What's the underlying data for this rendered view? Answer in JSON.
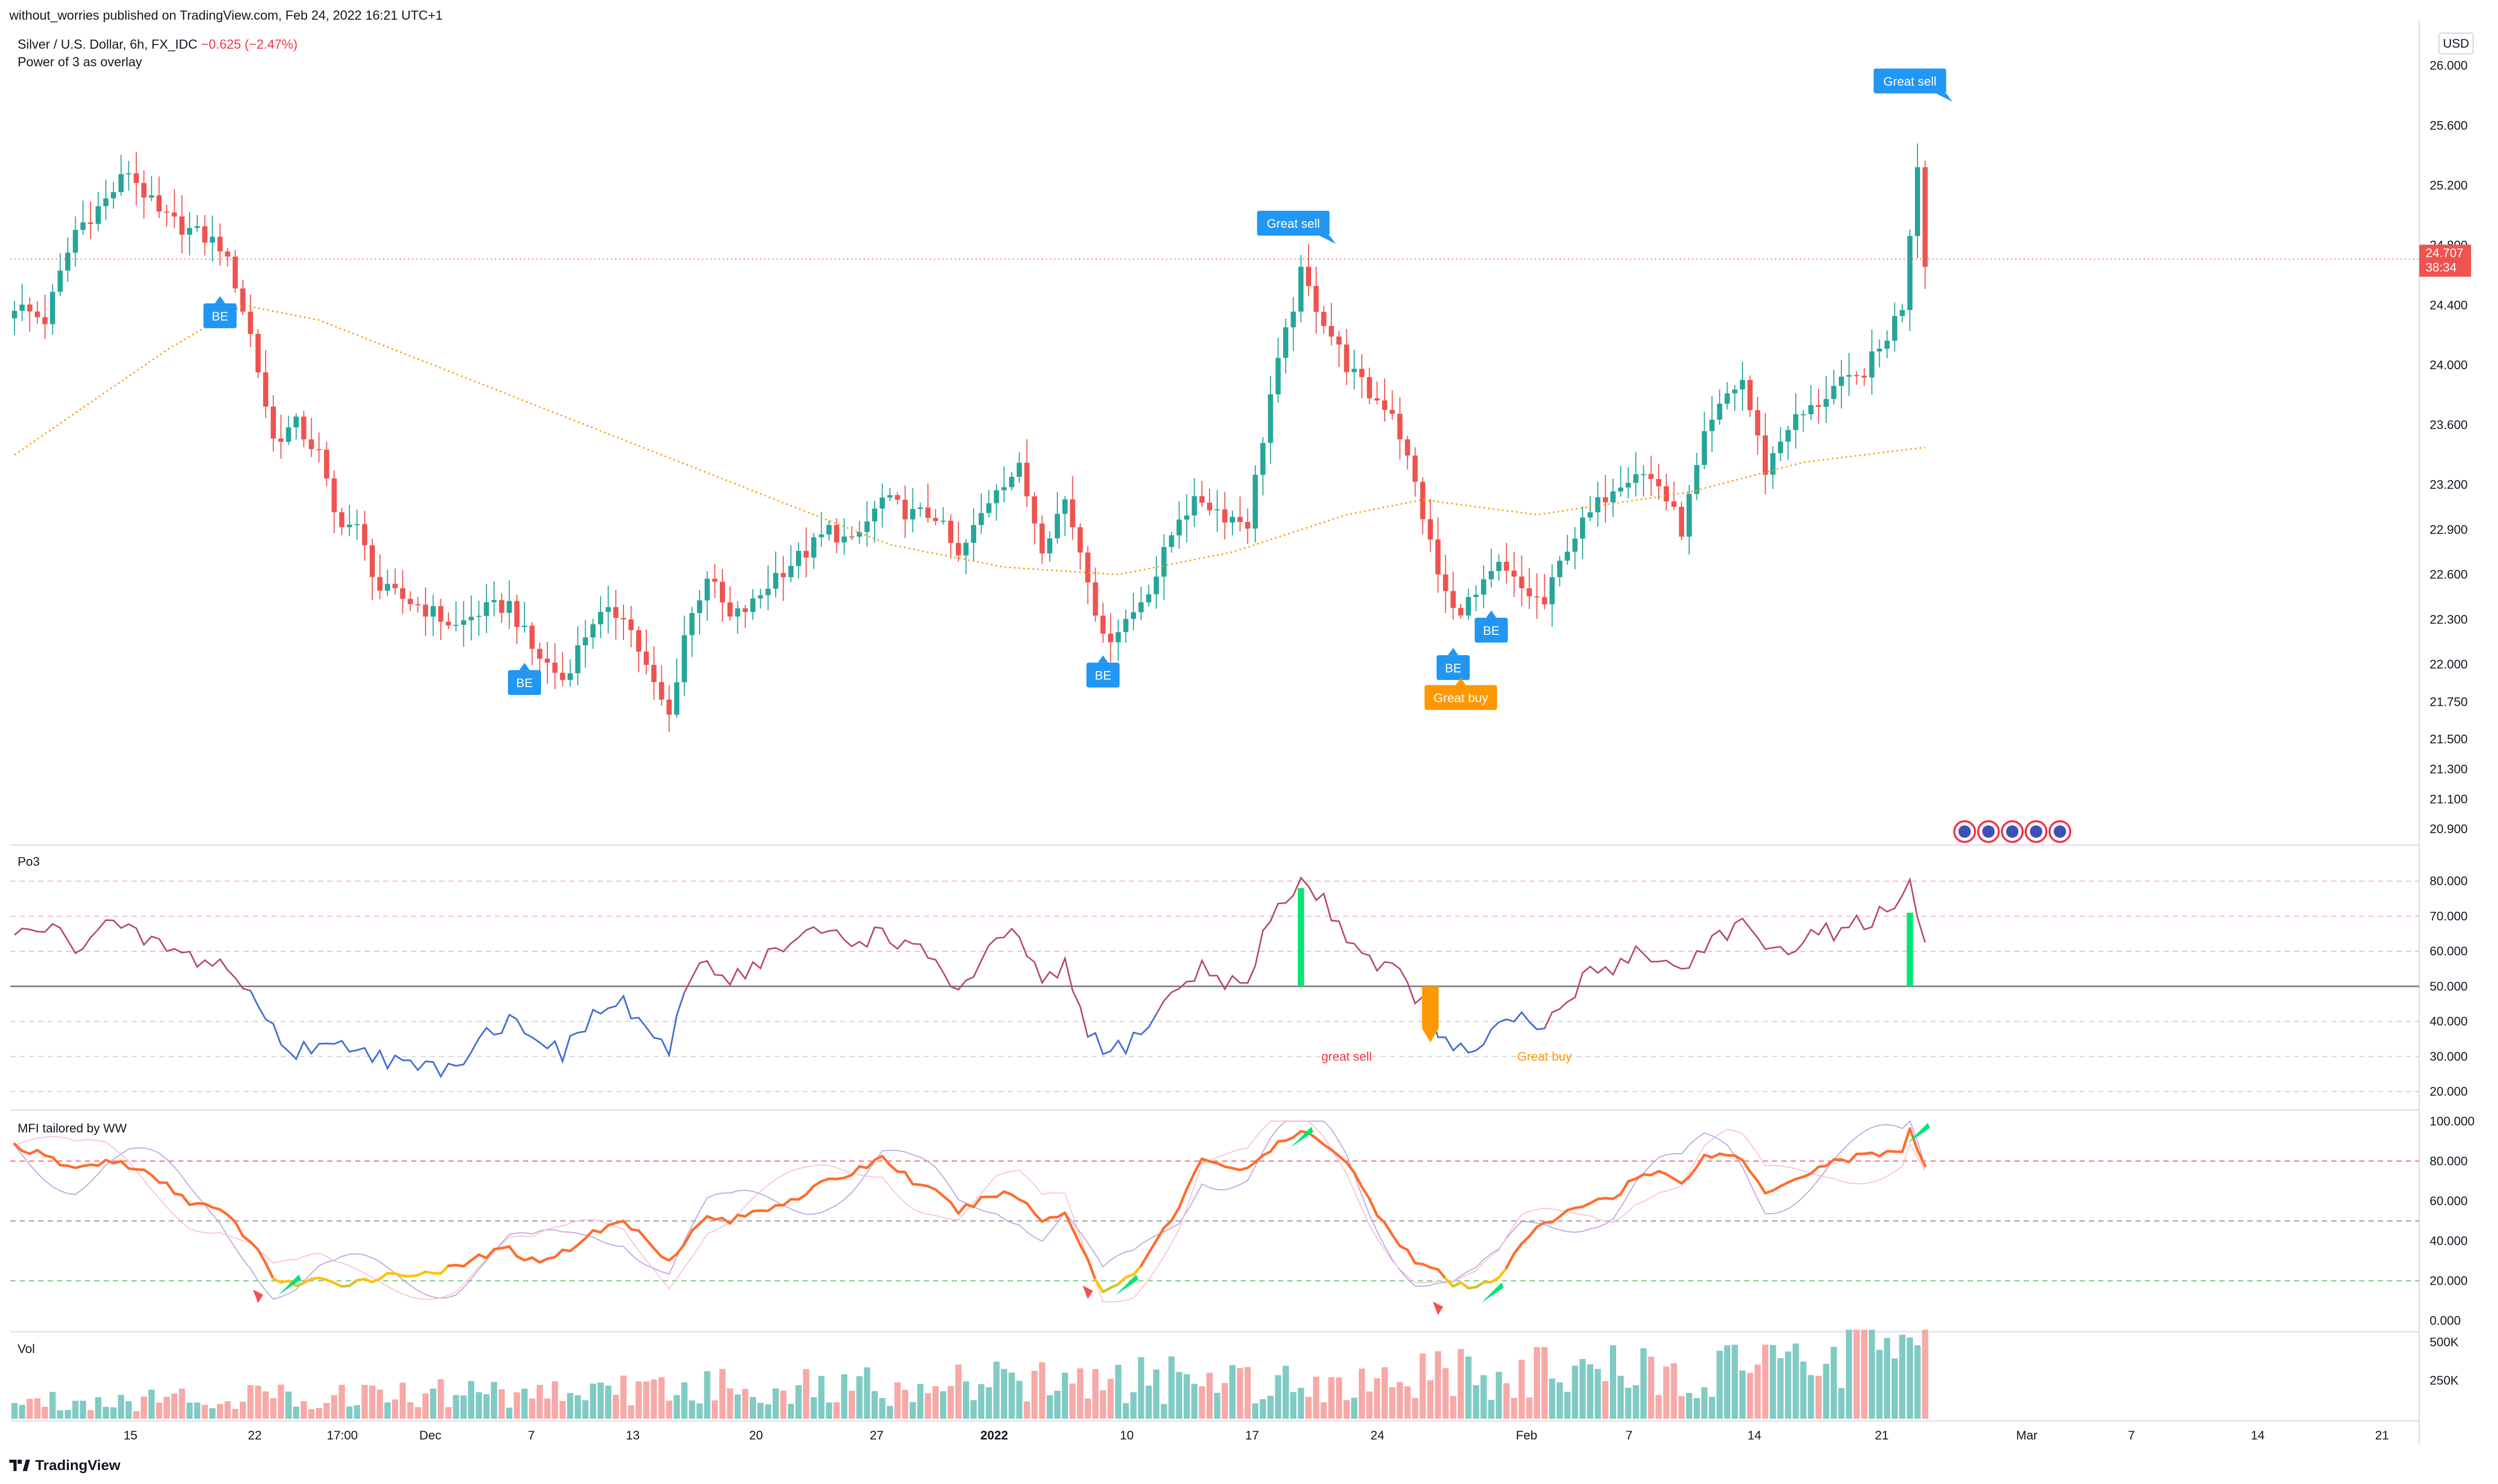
{
  "header": {
    "published": "without_worries published on TradingView.com, Feb 24, 2022 16:21 UTC+1",
    "symbol": "Silver / U.S. Dollar, 6h, FX_IDC",
    "change": "−0.625 (−2.47%)",
    "indicator": "Power of 3 as overlay"
  },
  "currency_button": "USD",
  "price_label": {
    "value": "24.707",
    "countdown": "38:34"
  },
  "panes": {
    "po3": "Po3",
    "mfi": "MFI tailored by WW",
    "vol": "Vol"
  },
  "footer": {
    "brand": "TradingView"
  },
  "colors": {
    "up": "#26a69a",
    "down": "#ef5350",
    "ma": "#ff9800",
    "signal": "#2196f3",
    "buy": "#ff9800",
    "po3_line": "#b54a6a",
    "po3_low": "#3f6fd8",
    "mfi_main": "#ff6d2e",
    "mfi_green": "#00e676"
  },
  "chart_data": [
    {
      "type": "candlestick",
      "title": "Silver / U.S. Dollar, 6h, FX_IDC",
      "ylim": [
        20.8,
        26.3
      ],
      "y_ticks": [
        "20.900",
        "21.100",
        "21.300",
        "21.500",
        "21.750",
        "22.000",
        "22.300",
        "22.600",
        "22.900",
        "23.200",
        "23.600",
        "24.000",
        "24.400",
        "24.800",
        "25.200",
        "25.600",
        "26.000"
      ],
      "x_ticks": [
        "15",
        "22",
        "17:00",
        "Dec",
        "7",
        "13",
        "20",
        "27",
        "2022",
        "10",
        "17",
        "24",
        "Feb",
        "7",
        "14",
        "21",
        "Mar",
        "7",
        "14",
        "21"
      ],
      "close_path": [
        [
          0,
          24.4
        ],
        [
          4,
          24.3
        ],
        [
          8,
          24.9
        ],
        [
          12,
          25.1
        ],
        [
          15,
          25.3
        ],
        [
          19,
          25.0
        ],
        [
          23,
          24.9
        ],
        [
          27,
          24.8
        ],
        [
          29,
          24.55
        ],
        [
          31,
          24.2
        ],
        [
          34,
          23.5
        ],
        [
          37,
          23.6
        ],
        [
          40,
          23.4
        ],
        [
          42,
          23.0
        ],
        [
          45,
          22.9
        ],
        [
          48,
          22.5
        ],
        [
          53,
          22.4
        ],
        [
          58,
          22.25
        ],
        [
          61,
          22.35
        ],
        [
          65,
          22.4
        ],
        [
          68,
          22.1
        ],
        [
          72,
          21.9
        ],
        [
          76,
          22.3
        ],
        [
          80,
          22.35
        ],
        [
          84,
          21.85
        ],
        [
          86,
          21.65
        ],
        [
          88,
          22.2
        ],
        [
          91,
          22.6
        ],
        [
          94,
          22.3
        ],
        [
          97,
          22.4
        ],
        [
          100,
          22.6
        ],
        [
          104,
          22.75
        ],
        [
          107,
          22.9
        ],
        [
          110,
          22.8
        ],
        [
          114,
          23.1
        ],
        [
          118,
          23.0
        ],
        [
          121,
          23.0
        ],
        [
          124,
          22.7
        ],
        [
          127,
          23.0
        ],
        [
          129,
          23.2
        ],
        [
          132,
          23.3
        ],
        [
          135,
          22.8
        ],
        [
          138,
          23.1
        ],
        [
          141,
          22.6
        ],
        [
          143,
          22.15
        ],
        [
          147,
          22.35
        ],
        [
          150,
          22.6
        ],
        [
          153,
          23.0
        ],
        [
          156,
          23.1
        ],
        [
          159,
          23.0
        ],
        [
          162,
          22.95
        ],
        [
          165,
          23.8
        ],
        [
          167,
          24.2
        ],
        [
          169,
          24.6
        ],
        [
          172,
          24.3
        ],
        [
          175,
          24.0
        ],
        [
          178,
          23.8
        ],
        [
          181,
          23.7
        ],
        [
          184,
          23.2
        ],
        [
          187,
          22.6
        ],
        [
          189,
          22.35
        ],
        [
          192,
          22.45
        ],
        [
          195,
          22.65
        ],
        [
          198,
          22.5
        ],
        [
          201,
          22.4
        ],
        [
          204,
          22.8
        ],
        [
          207,
          23.0
        ],
        [
          210,
          23.2
        ],
        [
          213,
          23.3
        ],
        [
          216,
          23.2
        ],
        [
          219,
          22.9
        ],
        [
          222,
          23.5
        ],
        [
          225,
          23.8
        ],
        [
          227,
          23.9
        ],
        [
          230,
          23.3
        ],
        [
          233,
          23.6
        ],
        [
          236,
          23.7
        ],
        [
          239,
          23.85
        ],
        [
          242,
          23.9
        ],
        [
          245,
          24.1
        ],
        [
          248,
          24.4
        ],
        [
          249,
          24.9
        ],
        [
          250,
          25.35
        ],
        [
          251,
          24.707
        ]
      ],
      "ma_path": [
        [
          0,
          23.4
        ],
        [
          20,
          24.1
        ],
        [
          30,
          24.4
        ],
        [
          40,
          24.3
        ],
        [
          60,
          23.9
        ],
        [
          80,
          23.5
        ],
        [
          100,
          23.1
        ],
        [
          115,
          22.8
        ],
        [
          130,
          22.65
        ],
        [
          145,
          22.6
        ],
        [
          160,
          22.75
        ],
        [
          175,
          23.0
        ],
        [
          185,
          23.1
        ],
        [
          200,
          23.0
        ],
        [
          220,
          23.15
        ],
        [
          235,
          23.35
        ],
        [
          251,
          23.45
        ]
      ],
      "signals": [
        {
          "label": "BE",
          "bar": 27,
          "price": 24.55,
          "placement": "below"
        },
        {
          "label": "BE",
          "bar": 67,
          "price": 22.1,
          "placement": "below"
        },
        {
          "label": "BE",
          "bar": 143,
          "price": 22.15,
          "placement": "below"
        },
        {
          "label": "BE",
          "bar": 194,
          "price": 22.45,
          "placement": "below"
        },
        {
          "label": "BE",
          "bar": 189,
          "price": 22.2,
          "placement": "below"
        },
        {
          "label": "Great sell",
          "bar": 168,
          "price": 24.65,
          "placement": "above"
        },
        {
          "label": "Great sell",
          "bar": 249,
          "price": 25.6,
          "placement": "above"
        },
        {
          "label": "Great buy",
          "bar": 190,
          "price": 22.0,
          "placement": "below"
        }
      ]
    },
    {
      "type": "line",
      "title": "Po3",
      "ylim": [
        15,
        90
      ],
      "y_ticks": [
        "20.000",
        "30.000",
        "40.000",
        "50.000",
        "60.000",
        "70.000",
        "80.000"
      ],
      "path": [
        [
          0,
          64
        ],
        [
          4,
          67
        ],
        [
          8,
          62
        ],
        [
          12,
          68
        ],
        [
          15,
          65
        ],
        [
          19,
          62
        ],
        [
          23,
          58
        ],
        [
          27,
          57
        ],
        [
          29,
          52
        ],
        [
          31,
          48
        ],
        [
          34,
          38
        ],
        [
          37,
          30
        ],
        [
          40,
          35
        ],
        [
          42,
          32
        ],
        [
          45,
          34
        ],
        [
          48,
          30
        ],
        [
          53,
          26
        ],
        [
          58,
          28
        ],
        [
          61,
          36
        ],
        [
          65,
          40
        ],
        [
          68,
          38
        ],
        [
          72,
          30
        ],
        [
          76,
          42
        ],
        [
          80,
          45
        ],
        [
          84,
          36
        ],
        [
          86,
          28
        ],
        [
          88,
          50
        ],
        [
          91,
          58
        ],
        [
          94,
          52
        ],
        [
          97,
          56
        ],
        [
          100,
          60
        ],
        [
          104,
          64
        ],
        [
          107,
          66
        ],
        [
          110,
          62
        ],
        [
          114,
          66
        ],
        [
          118,
          60
        ],
        [
          121,
          58
        ],
        [
          124,
          48
        ],
        [
          127,
          56
        ],
        [
          129,
          62
        ],
        [
          132,
          65
        ],
        [
          135,
          50
        ],
        [
          138,
          55
        ],
        [
          141,
          38
        ],
        [
          143,
          30
        ],
        [
          147,
          35
        ],
        [
          150,
          42
        ],
        [
          153,
          50
        ],
        [
          156,
          55
        ],
        [
          159,
          52
        ],
        [
          162,
          50
        ],
        [
          165,
          70
        ],
        [
          167,
          75
        ],
        [
          169,
          80
        ],
        [
          172,
          74
        ],
        [
          175,
          65
        ],
        [
          178,
          58
        ],
        [
          181,
          55
        ],
        [
          184,
          48
        ],
        [
          187,
          38
        ],
        [
          189,
          30
        ],
        [
          192,
          33
        ],
        [
          195,
          38
        ],
        [
          198,
          40
        ],
        [
          201,
          38
        ],
        [
          204,
          46
        ],
        [
          207,
          54
        ],
        [
          210,
          56
        ],
        [
          213,
          60
        ],
        [
          216,
          58
        ],
        [
          219,
          54
        ],
        [
          222,
          62
        ],
        [
          225,
          66
        ],
        [
          227,
          68
        ],
        [
          230,
          58
        ],
        [
          233,
          62
        ],
        [
          236,
          64
        ],
        [
          239,
          66
        ],
        [
          242,
          68
        ],
        [
          245,
          70
        ],
        [
          248,
          73
        ],
        [
          249,
          80
        ],
        [
          251,
          60
        ]
      ],
      "hlines": [
        50
      ],
      "annotations": [
        {
          "text": "great sell",
          "bar": 175,
          "value": 30,
          "color": "#f23645"
        },
        {
          "text": "Great buy",
          "bar": 201,
          "value": 30,
          "color": "#ff9800"
        }
      ]
    },
    {
      "type": "line",
      "title": "MFI tailored by WW",
      "ylim": [
        -5,
        105
      ],
      "y_ticks": [
        "0.000",
        "20.000",
        "40.000",
        "60.000",
        "80.000",
        "100.000"
      ],
      "path": [
        [
          0,
          88
        ],
        [
          4,
          82
        ],
        [
          8,
          76
        ],
        [
          12,
          80
        ],
        [
          15,
          78
        ],
        [
          19,
          70
        ],
        [
          23,
          60
        ],
        [
          27,
          55
        ],
        [
          29,
          48
        ],
        [
          31,
          40
        ],
        [
          34,
          22
        ],
        [
          37,
          18
        ],
        [
          40,
          20
        ],
        [
          42,
          18
        ],
        [
          45,
          20
        ],
        [
          48,
          22
        ],
        [
          53,
          24
        ],
        [
          58,
          26
        ],
        [
          61,
          32
        ],
        [
          65,
          36
        ],
        [
          68,
          30
        ],
        [
          72,
          34
        ],
        [
          76,
          44
        ],
        [
          80,
          50
        ],
        [
          84,
          38
        ],
        [
          86,
          30
        ],
        [
          88,
          40
        ],
        [
          91,
          52
        ],
        [
          94,
          50
        ],
        [
          97,
          54
        ],
        [
          100,
          58
        ],
        [
          104,
          64
        ],
        [
          107,
          70
        ],
        [
          110,
          74
        ],
        [
          114,
          82
        ],
        [
          118,
          70
        ],
        [
          121,
          64
        ],
        [
          124,
          55
        ],
        [
          127,
          60
        ],
        [
          129,
          64
        ],
        [
          132,
          62
        ],
        [
          135,
          50
        ],
        [
          138,
          55
        ],
        [
          141,
          30
        ],
        [
          143,
          14
        ],
        [
          147,
          24
        ],
        [
          150,
          40
        ],
        [
          153,
          56
        ],
        [
          156,
          82
        ],
        [
          159,
          78
        ],
        [
          162,
          75
        ],
        [
          165,
          86
        ],
        [
          167,
          90
        ],
        [
          169,
          94
        ],
        [
          172,
          90
        ],
        [
          175,
          80
        ],
        [
          178,
          60
        ],
        [
          181,
          44
        ],
        [
          184,
          30
        ],
        [
          187,
          24
        ],
        [
          189,
          18
        ],
        [
          192,
          16
        ],
        [
          195,
          22
        ],
        [
          198,
          40
        ],
        [
          201,
          48
        ],
        [
          204,
          54
        ],
        [
          207,
          60
        ],
        [
          210,
          62
        ],
        [
          213,
          72
        ],
        [
          216,
          74
        ],
        [
          219,
          70
        ],
        [
          222,
          82
        ],
        [
          225,
          84
        ],
        [
          227,
          80
        ],
        [
          230,
          65
        ],
        [
          233,
          70
        ],
        [
          236,
          75
        ],
        [
          239,
          80
        ],
        [
          242,
          82
        ],
        [
          245,
          84
        ],
        [
          248,
          86
        ],
        [
          249,
          95
        ],
        [
          251,
          76
        ]
      ],
      "hlines": [
        20,
        50,
        80
      ]
    },
    {
      "type": "bar",
      "title": "Vol",
      "ylim": [
        0,
        560000
      ],
      "y_ticks": [
        "250K",
        "500K"
      ],
      "series": [
        {
          "name": "",
          "values": "per-bar volume, varies 0–600K with up/down colouring"
        }
      ]
    }
  ]
}
